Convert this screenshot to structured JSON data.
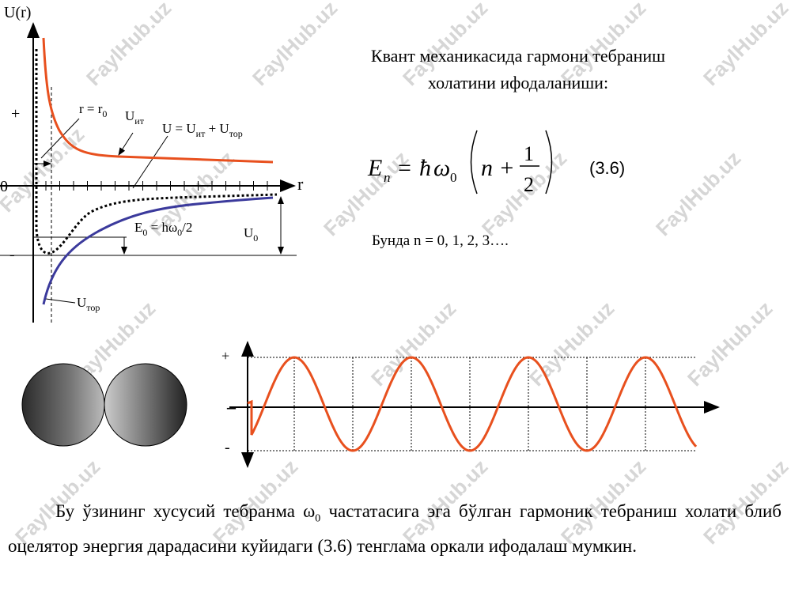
{
  "diagram": {
    "axis_label": "U(r)",
    "plus": "+",
    "zero": "0",
    "minus": "-",
    "r_label": "r",
    "labels": [
      [
        "r = r",
        "0"
      ],
      [
        "U",
        "ит"
      ],
      [
        "U = U",
        "ит",
        " + U",
        "тор"
      ],
      [
        "E",
        "0",
        " = hω",
        "0",
        "/2"
      ],
      [
        "U",
        "0"
      ],
      [
        "U",
        "тор"
      ]
    ]
  },
  "heading": [
    "Квант механикасида гармони тебраниш",
    "холатини ифодаланиши:"
  ],
  "formula": {
    "E": "E",
    "n_sub": "n",
    "eq": "=",
    "hbar": "ħ",
    "omega": "ω",
    "zero_sub": "0",
    "n_plus": "n +",
    "num": "1",
    "den": "2",
    "number": "(3.6)"
  },
  "note": "Бунда n = 0, 1, 2, 3….",
  "wave": {
    "plus": "+",
    "dash": "–",
    "minus": "-"
  },
  "paragraph": [
    "Бу ўзининг хусусий тебранма ω",
    "0",
    " частатасига эга бўлган гармоник тебраниш холати блиб оцелятор энергия дарадасини куйидаги (3.6) тенглама оркали ифодалаш мумкин."
  ],
  "watermark": "FaylHub.uz"
}
